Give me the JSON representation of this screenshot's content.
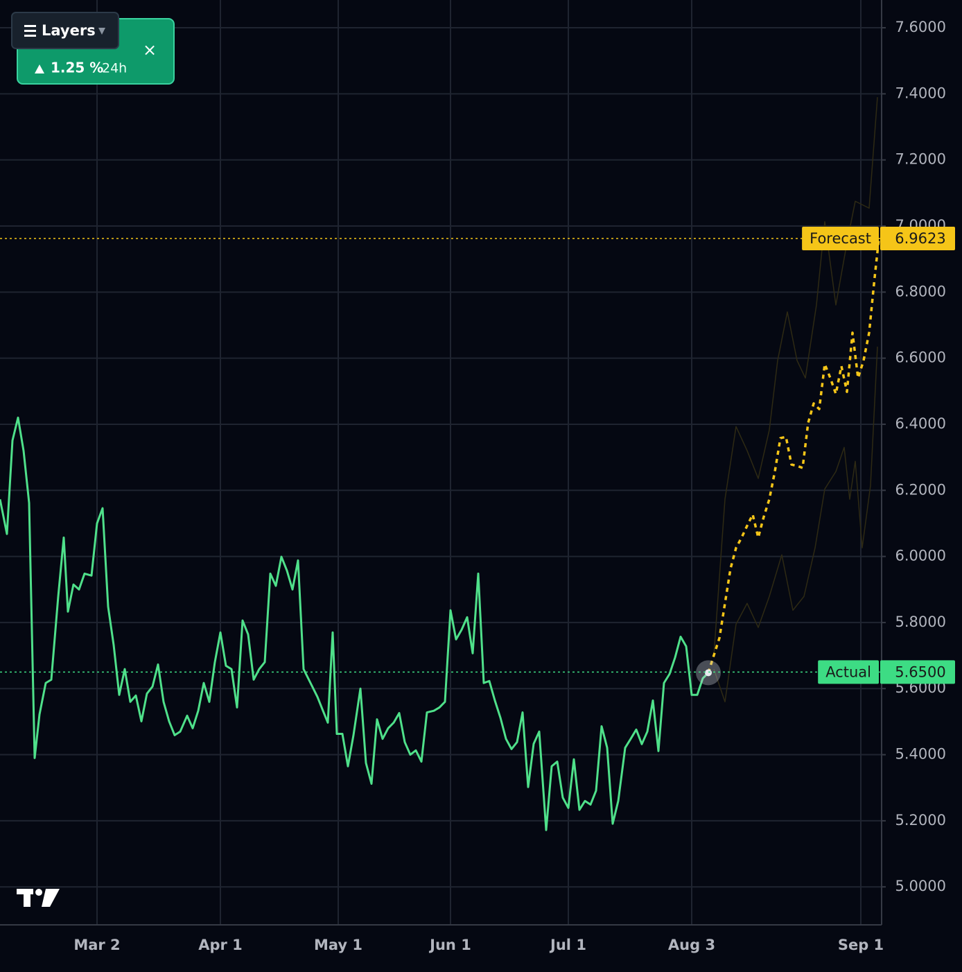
{
  "chart_data": {
    "type": "line",
    "xlim": [
      0,
      159
    ],
    "ylim": [
      4.885,
      7.684
    ],
    "xticks": [
      {
        "value": 17.5,
        "label": "Mar 2"
      },
      {
        "value": 39.75,
        "label": "Apr 1"
      },
      {
        "value": 61,
        "label": "May 1"
      },
      {
        "value": 81.25,
        "label": "Jun 1"
      },
      {
        "value": 102.5,
        "label": "Jul 1"
      },
      {
        "value": 124.75,
        "label": "Aug 3"
      },
      {
        "value": 155.25,
        "label": "Sep 1"
      }
    ],
    "yticks": [
      {
        "value": 5.0,
        "label": "5.0000"
      },
      {
        "value": 5.2,
        "label": "5.2000"
      },
      {
        "value": 5.4,
        "label": "5.4000"
      },
      {
        "value": 5.6,
        "label": "5.6000"
      },
      {
        "value": 5.8,
        "label": "5.8000"
      },
      {
        "value": 6.0,
        "label": "6.0000"
      },
      {
        "value": 6.2,
        "label": "6.2000"
      },
      {
        "value": 6.4,
        "label": "6.4000"
      },
      {
        "value": 6.6,
        "label": "6.6000"
      },
      {
        "value": 6.8,
        "label": "6.8000"
      },
      {
        "value": 7.0,
        "label": "7.0000"
      },
      {
        "value": 7.2,
        "label": "7.2000"
      },
      {
        "value": 7.4,
        "label": "7.4000"
      },
      {
        "value": 7.6,
        "label": "7.6000"
      }
    ],
    "grid": true,
    "series": [
      {
        "color": "#4fe08a",
        "style": "solid",
        "width": 3,
        "x": [
          0,
          1.25,
          2.25,
          3.25,
          4.25,
          5.25,
          6.25,
          7.125,
          8.25,
          9.25,
          10.5,
          11.5,
          12.25,
          13.25,
          14.25,
          15.25,
          16.5,
          17.5,
          18.5,
          19.5,
          20.5,
          21.5,
          22.5,
          23.5,
          24.5,
          25.5,
          26.5,
          27.5,
          28.5,
          29.5,
          30.5,
          31.5,
          32.5,
          33.75,
          34.75,
          35.75,
          36.75,
          37.75,
          38.75,
          39.75,
          40.75,
          41.75,
          42.75,
          43.75,
          44.75,
          45.75,
          46.75,
          47.75,
          48.75,
          49.75,
          50.75,
          51.75,
          52.75,
          53.75,
          54.75,
          56,
          57.25,
          58.25,
          59.125,
          60,
          60.75,
          61.75,
          62.75,
          63.75,
          65,
          66,
          67,
          68,
          69,
          70,
          71,
          72,
          73,
          74,
          75,
          76,
          77,
          78.25,
          79.25,
          80.25,
          81.25,
          82.25,
          83.25,
          84.25,
          85.25,
          86.25,
          87.25,
          88.25,
          89.25,
          90.25,
          91.25,
          92.25,
          93.25,
          94.25,
          95.25,
          96.25,
          97.25,
          98.5,
          99.5,
          100.5,
          101.5,
          102.5,
          103.5,
          104.5,
          105.5,
          106.5,
          107.5,
          108.5,
          109.5,
          110.5,
          111.5,
          112.75,
          113.75,
          114.75,
          115.75,
          116.75,
          117.75,
          118.75,
          119.75,
          120.75,
          121.75,
          122.75,
          123.75,
          124.75,
          125.75,
          126.75,
          127.75
        ],
        "values": [
          6.173,
          6.068,
          6.351,
          6.42,
          6.32,
          6.162,
          5.39,
          5.522,
          5.617,
          5.627,
          5.879,
          6.057,
          5.833,
          5.915,
          5.9,
          5.948,
          5.942,
          6.1,
          6.146,
          5.848,
          5.732,
          5.581,
          5.659,
          5.56,
          5.579,
          5.501,
          5.585,
          5.606,
          5.673,
          5.56,
          5.501,
          5.459,
          5.47,
          5.518,
          5.48,
          5.533,
          5.617,
          5.56,
          5.68,
          5.77,
          5.669,
          5.659,
          5.543,
          5.806,
          5.764,
          5.627,
          5.659,
          5.68,
          5.948,
          5.911,
          5.999,
          5.957,
          5.9,
          5.988,
          5.659,
          5.617,
          5.575,
          5.533,
          5.497,
          5.77,
          5.463,
          5.463,
          5.365,
          5.459,
          5.6,
          5.375,
          5.312,
          5.507,
          5.448,
          5.48,
          5.497,
          5.526,
          5.438,
          5.4,
          5.413,
          5.379,
          5.528,
          5.533,
          5.543,
          5.56,
          5.837,
          5.749,
          5.778,
          5.816,
          5.707,
          5.948,
          5.617,
          5.623,
          5.564,
          5.512,
          5.448,
          5.417,
          5.438,
          5.528,
          5.302,
          5.433,
          5.47,
          5.172,
          5.365,
          5.379,
          5.27,
          5.239,
          5.386,
          5.233,
          5.26,
          5.249,
          5.291,
          5.486,
          5.421,
          5.191,
          5.26,
          5.421,
          5.448,
          5.476,
          5.432,
          5.47,
          5.564,
          5.411,
          5.617,
          5.644,
          5.694,
          5.757,
          5.728,
          5.581,
          5.581,
          5.631,
          5.648
        ]
      },
      {
        "color": "#f5c518",
        "style": "dashed",
        "width": 3.5,
        "x": [
          127.75,
          128.75,
          129.75,
          130.75,
          131.75,
          132.75,
          133.75,
          134.75,
          135.75,
          136.75,
          137.75,
          138.75,
          139.75,
          140.75,
          141.75,
          142.75,
          143.75,
          144.75,
          145.75,
          146.75,
          147.75,
          148.75,
          149.75,
          150.75,
          151.75,
          152.75,
          153.75,
          154.75,
          155.75,
          156.75,
          157.75,
          158.5
        ],
        "values": [
          5.648,
          5.701,
          5.753,
          5.858,
          5.963,
          6.026,
          6.057,
          6.093,
          6.127,
          6.057,
          6.12,
          6.173,
          6.257,
          6.358,
          6.362,
          6.278,
          6.274,
          6.268,
          6.404,
          6.463,
          6.446,
          6.582,
          6.54,
          6.492,
          6.576,
          6.498,
          6.677,
          6.54,
          6.593,
          6.677,
          6.845,
          6.96
        ]
      },
      {
        "color": "#2e2a14",
        "style": "solid",
        "width": 1.5,
        "x": [
          128.75,
          130.75,
          132.75,
          134.75,
          136.75,
          138.75,
          140.25,
          142,
          143.75,
          145.25,
          147.25,
          148.75,
          150.75,
          152.75,
          154.25,
          156.75,
          158.25
        ],
        "values": [
          5.701,
          6.173,
          6.393,
          6.32,
          6.236,
          6.383,
          6.593,
          6.74,
          6.593,
          6.54,
          6.761,
          7.013,
          6.761,
          6.949,
          7.075,
          7.054,
          7.39
        ]
      },
      {
        "color": "#2e2a14",
        "style": "solid",
        "width": 1.5,
        "x": [
          128.75,
          130.75,
          132.75,
          134.75,
          136.75,
          138.75,
          141,
          143,
          145,
          147,
          148.75,
          150.75,
          152.25,
          153.25,
          154.25,
          155.5,
          157,
          158.25
        ],
        "values": [
          5.659,
          5.56,
          5.795,
          5.858,
          5.785,
          5.879,
          6.005,
          5.837,
          5.879,
          6.026,
          6.204,
          6.257,
          6.33,
          6.173,
          6.288,
          6.026,
          6.215,
          6.635
        ]
      }
    ],
    "price_lines": [
      {
        "name": "Forecast",
        "value": 6.9623,
        "color": "#f5c518"
      },
      {
        "name": "Actual",
        "value": 5.65,
        "value_label": "5.6500",
        "color": "#3ddc84"
      }
    ]
  },
  "ui": {
    "layers_button": "Layers",
    "change_card": {
      "change": "1.25 %",
      "period": "24h",
      "close": "×"
    }
  }
}
